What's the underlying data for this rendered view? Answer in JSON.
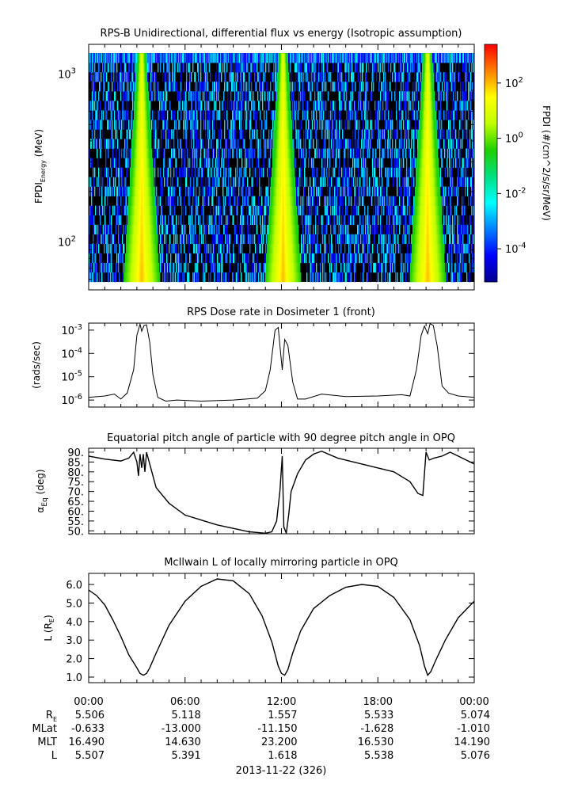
{
  "figure": {
    "date_label": "2013-11-22 (326)"
  },
  "chart_data": [
    {
      "id": "spectrogram",
      "type": "heatmap",
      "title": "RPS-B  Unidirectional, differential flux vs energy (Isotropic assumption)",
      "ylabel_main": "FPDI",
      "ylabel_sub": "Energy",
      "ylabel_unit": " (MeV)",
      "yscale": "log",
      "ylim": [
        52,
        1500
      ],
      "energy_band_range": [
        58,
        1330
      ],
      "yticks": [
        {
          "base": "10",
          "exp": "3",
          "value": 1000
        },
        {
          "base": "10",
          "exp": "2",
          "value": 100
        }
      ],
      "xlim_hours": [
        0,
        24
      ],
      "colorbar": {
        "label": "FPDI (#/cm^2/s/sr/MeV)",
        "scale": "log",
        "range_log10": [
          -5.2,
          3.4
        ],
        "ticks": [
          {
            "base": "10",
            "exp": "2",
            "log10": 2
          },
          {
            "base": "10",
            "exp": "0",
            "log10": 0
          },
          {
            "base": "10",
            "exp": "-2",
            "log10": -2
          },
          {
            "base": "10",
            "exp": "-4",
            "log10": -4
          }
        ],
        "colors": [
          "#00008f",
          "#0000ff",
          "#0080ff",
          "#00ffff",
          "#00e080",
          "#20d000",
          "#c0ff00",
          "#ffff00",
          "#ff8000",
          "#ff0000"
        ]
      },
      "belt_passes_hours": [
        3.3,
        12.1,
        21.1
      ],
      "background_color": "#000000"
    },
    {
      "id": "dose",
      "type": "line",
      "title": "RPS  Dose rate in Dosimeter 1 (front)",
      "ylabel": "(rads/sec)",
      "yscale": "log",
      "ylim": [
        5e-07,
        0.002
      ],
      "yticks": [
        {
          "base": "10",
          "exp": "-3",
          "value": 0.001
        },
        {
          "base": "10",
          "exp": "-4",
          "value": 0.0001
        },
        {
          "base": "10",
          "exp": "-5",
          "value": 1e-05
        },
        {
          "base": "10",
          "exp": "-6",
          "value": 1e-06
        }
      ],
      "x_hours": [
        0,
        1,
        1.6,
        2,
        2.4,
        2.8,
        3.0,
        3.2,
        3.3,
        3.45,
        3.6,
        3.8,
        4.0,
        4.3,
        4.8,
        5.5,
        7,
        9,
        10.5,
        11.0,
        11.3,
        11.6,
        11.8,
        11.95,
        12.05,
        12.2,
        12.4,
        12.7,
        13.0,
        13.5,
        14.5,
        16,
        18,
        19.5,
        20.0,
        20.4,
        20.7,
        20.9,
        21.1,
        21.25,
        21.45,
        21.7,
        22.0,
        22.4,
        23,
        24
      ],
      "y_values": [
        1.3e-06,
        1.5e-06,
        1.8e-06,
        1.1e-06,
        2e-06,
        2e-05,
        0.0006,
        0.0018,
        0.0009,
        0.0016,
        0.0017,
        0.0003,
        1.2e-05,
        1.3e-06,
        9e-07,
        1e-06,
        9e-07,
        1e-06,
        1.2e-06,
        2.5e-06,
        2e-05,
        0.001,
        0.0013,
        0.0001,
        2e-05,
        0.0004,
        0.00022,
        6e-06,
        1.1e-06,
        1.1e-06,
        1.8e-06,
        1.4e-06,
        1.5e-06,
        1.7e-06,
        1.5e-06,
        2e-05,
        0.0006,
        0.0015,
        0.0007,
        0.0019,
        0.0016,
        0.0002,
        4e-06,
        2e-06,
        1.5e-06,
        1.3e-06
      ]
    },
    {
      "id": "pitch",
      "type": "line",
      "title": "Equatorial pitch angle of particle with 90 degree pitch angle in OPQ",
      "ylabel_main": "α",
      "ylabel_sub": "Eq",
      "ylabel_unit": " (deg)",
      "ylim": [
        48.5,
        92
      ],
      "yticks": [
        90,
        85,
        80,
        75,
        70,
        65,
        60,
        55,
        50
      ],
      "x_hours": [
        0,
        1,
        2,
        2.5,
        2.8,
        3.0,
        3.1,
        3.2,
        3.3,
        3.4,
        3.5,
        3.6,
        3.8,
        4.2,
        5.0,
        6.0,
        8.0,
        10.0,
        11.0,
        11.4,
        11.7,
        11.9,
        12.05,
        12.15,
        12.3,
        12.45,
        12.6,
        13.0,
        13.5,
        14.0,
        14.5,
        15.5,
        17,
        19,
        20.0,
        20.5,
        20.8,
        21.0,
        21.2,
        21.5,
        22.0,
        22.5,
        23.0,
        24
      ],
      "y_values": [
        88,
        86.5,
        85.5,
        87,
        90,
        85,
        78,
        89,
        82,
        89,
        80,
        90,
        84,
        72,
        64,
        58,
        53,
        49.5,
        48.8,
        49.5,
        55,
        70,
        88,
        52,
        48.8,
        58,
        70,
        79,
        86,
        89,
        90.5,
        87,
        84,
        80,
        75,
        69,
        68,
        90,
        86,
        87,
        88,
        90,
        88,
        84
      ]
    },
    {
      "id": "lshell",
      "type": "line",
      "title": "McIlwain L of locally mirroring particle in OPQ",
      "ylabel_main": "L (R",
      "ylabel_sub": "E",
      "ylabel_unit": ")",
      "ylim": [
        0.7,
        6.6
      ],
      "yticks": [
        6.0,
        5.0,
        4.0,
        3.0,
        2.0,
        1.0
      ],
      "x_hours": [
        0,
        0.5,
        1,
        1.5,
        2,
        2.5,
        3.0,
        3.2,
        3.4,
        3.6,
        3.8,
        4.2,
        5,
        6,
        7,
        8,
        9,
        10,
        10.8,
        11.4,
        11.8,
        12.0,
        12.2,
        12.4,
        12.7,
        13.2,
        14,
        15,
        16,
        17,
        18,
        19,
        20,
        20.6,
        20.9,
        21.1,
        21.3,
        21.6,
        22.2,
        23,
        24
      ],
      "y_values": [
        5.7,
        5.4,
        4.9,
        4.1,
        3.2,
        2.2,
        1.5,
        1.2,
        1.1,
        1.2,
        1.5,
        2.3,
        3.8,
        5.1,
        5.9,
        6.3,
        6.2,
        5.5,
        4.3,
        2.9,
        1.6,
        1.2,
        1.1,
        1.4,
        2.3,
        3.5,
        4.7,
        5.4,
        5.85,
        6.0,
        5.9,
        5.3,
        4.1,
        2.7,
        1.6,
        1.1,
        1.3,
        1.9,
        3.0,
        4.2,
        5.1
      ]
    }
  ],
  "time_axis": {
    "tick_labels": [
      "00:00",
      "06:00",
      "12:00",
      "18:00",
      "00:00"
    ],
    "tick_hours": [
      0,
      6,
      12,
      18,
      24
    ],
    "rows": [
      {
        "label_main": "R",
        "label_sub": "E",
        "values": [
          "5.506",
          "5.118",
          "1.557",
          "5.533",
          "5.074"
        ]
      },
      {
        "label_main": "MLat",
        "label_sub": "",
        "values": [
          "-0.633",
          "-13.000",
          "-11.150",
          "-1.628",
          "-1.010"
        ]
      },
      {
        "label_main": "MLT",
        "label_sub": "",
        "values": [
          "16.490",
          "14.630",
          "23.200",
          "16.530",
          "14.190"
        ]
      },
      {
        "label_main": "L",
        "label_sub": "",
        "values": [
          "5.507",
          "5.391",
          "1.618",
          "5.538",
          "5.076"
        ]
      }
    ]
  }
}
